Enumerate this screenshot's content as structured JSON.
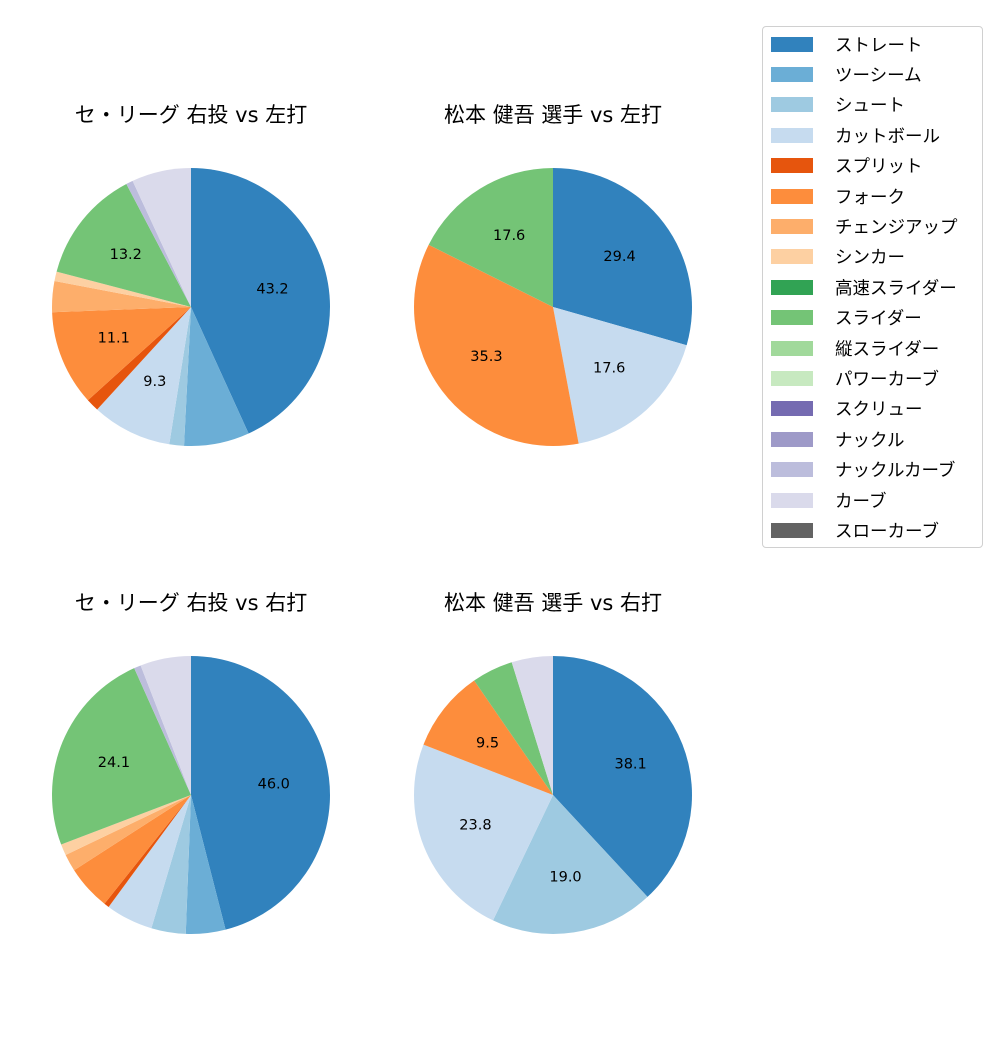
{
  "chart_data": [
    {
      "type": "pie",
      "title": "セ・リーグ 右投 vs 左打",
      "start_angle": 90,
      "direction": "clockwise",
      "categories": [
        "ストレート",
        "ツーシーム",
        "シュート",
        "カットボール",
        "スプリット",
        "フォーク",
        "チェンジアップ",
        "シンカー",
        "スライダー",
        "ナックルカーブ",
        "カーブ"
      ],
      "values": [
        43.2,
        7.6,
        1.7,
        9.3,
        1.5,
        11.1,
        3.6,
        1.1,
        13.2,
        0.8,
        6.9
      ],
      "labels_shown": [
        "43.2",
        "",
        "",
        "9.3",
        "",
        "11.1",
        "",
        "",
        "13.2",
        "",
        ""
      ]
    },
    {
      "type": "pie",
      "title": "松本 健吾 選手 vs 左打",
      "start_angle": 90,
      "direction": "clockwise",
      "categories": [
        "ストレート",
        "カットボール",
        "フォーク",
        "スライダー"
      ],
      "values": [
        29.4,
        17.6,
        35.3,
        17.6
      ],
      "labels_shown": [
        "29.4",
        "17.6",
        "35.3",
        "17.6"
      ]
    },
    {
      "type": "pie",
      "title": "セ・リーグ 右投 vs 右打",
      "start_angle": 90,
      "direction": "clockwise",
      "categories": [
        "ストレート",
        "ツーシーム",
        "シュート",
        "カットボール",
        "スプリット",
        "フォーク",
        "チェンジアップ",
        "シンカー",
        "スライダー",
        "ナックルカーブ",
        "カーブ"
      ],
      "values": [
        46.0,
        4.6,
        4.0,
        5.5,
        0.6,
        5.2,
        2.0,
        1.3,
        24.1,
        0.8,
        5.9
      ],
      "labels_shown": [
        "46.0",
        "",
        "",
        "",
        "",
        "",
        "",
        "",
        "24.1",
        "",
        ""
      ]
    },
    {
      "type": "pie",
      "title": "松本 健吾 選手 vs 右打",
      "start_angle": 90,
      "direction": "clockwise",
      "categories": [
        "ストレート",
        "シュート",
        "カットボール",
        "フォーク",
        "スライダー",
        "カーブ"
      ],
      "values": [
        38.1,
        19.0,
        23.8,
        9.5,
        4.8,
        4.8
      ],
      "labels_shown": [
        "38.1",
        "19.0",
        "23.8",
        "9.5",
        "",
        ""
      ]
    }
  ],
  "legend": {
    "position": "upper right",
    "items": [
      {
        "label": "ストレート",
        "color": "#3182bd"
      },
      {
        "label": "ツーシーム",
        "color": "#6baed6"
      },
      {
        "label": "シュート",
        "color": "#9ecae1"
      },
      {
        "label": "カットボール",
        "color": "#c6dbef"
      },
      {
        "label": "スプリット",
        "color": "#e6550d"
      },
      {
        "label": "フォーク",
        "color": "#fd8d3c"
      },
      {
        "label": "チェンジアップ",
        "color": "#fdae6b"
      },
      {
        "label": "シンカー",
        "color": "#fdd0a2"
      },
      {
        "label": "高速スライダー",
        "color": "#31a354"
      },
      {
        "label": "スライダー",
        "color": "#74c476"
      },
      {
        "label": "縦スライダー",
        "color": "#a1d99b"
      },
      {
        "label": "パワーカーブ",
        "color": "#c7e9c0"
      },
      {
        "label": "スクリュー",
        "color": "#756bb1"
      },
      {
        "label": "ナックル",
        "color": "#9e9ac8"
      },
      {
        "label": "ナックルカーブ",
        "color": "#bcbddc"
      },
      {
        "label": "カーブ",
        "color": "#dadaeb"
      },
      {
        "label": "スローカーブ",
        "color": "#636363"
      }
    ]
  },
  "panels": [
    {
      "title": "セ・リーグ 右投 vs 左打"
    },
    {
      "title": "松本 健吾 選手 vs 左打"
    },
    {
      "title": "セ・リーグ 右投 vs 右打"
    },
    {
      "title": "松本 健吾 選手 vs 右打"
    }
  ]
}
